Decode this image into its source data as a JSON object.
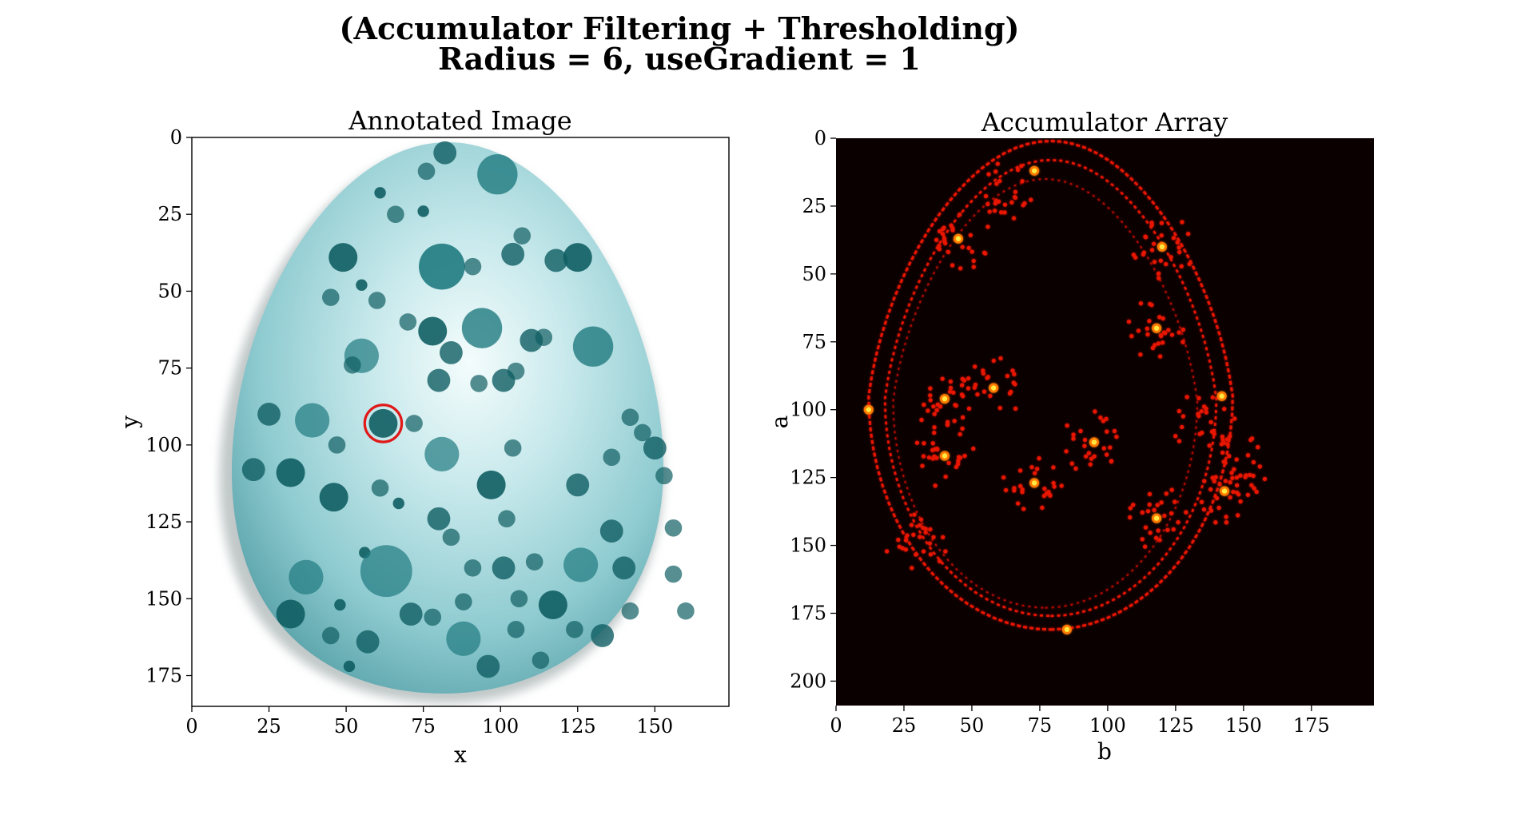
{
  "suptitle": {
    "line1": "(Accumulator Filtering + Thresholding)",
    "line2": "Radius = 6, useGradient = 1"
  },
  "colors": {
    "egg_light": "#e6f6f7",
    "egg_mid": "#9fd2d6",
    "egg_dark": "#6fb4ba",
    "spot": "#1f7b80",
    "spot_dark": "#0f5e63",
    "detection": "#e01818",
    "acc_bg": "#0b0000",
    "acc_edge": "#e81400",
    "acc_hot": "#ffe840"
  },
  "chart_data": [
    {
      "type": "image",
      "title": "Annotated Image",
      "xlabel": "x",
      "ylabel": "y",
      "xlim": [
        0,
        174
      ],
      "ylim": [
        185,
        0
      ],
      "xticks": [
        0,
        25,
        50,
        75,
        100,
        125,
        150
      ],
      "yticks": [
        0,
        25,
        50,
        75,
        100,
        125,
        150,
        175
      ],
      "grid": false,
      "detected_circle": {
        "center_x": 62,
        "center_y": 93,
        "radius": 6,
        "color": "#e01818"
      }
    },
    {
      "type": "heatmap",
      "title": "Accumulator Array",
      "xlabel": "b",
      "ylabel": "a",
      "xlim": [
        0,
        198
      ],
      "ylim": [
        209,
        0
      ],
      "xticks": [
        0,
        25,
        50,
        75,
        100,
        125,
        150,
        175
      ],
      "yticks": [
        0,
        25,
        50,
        75,
        100,
        125,
        150,
        175,
        200
      ],
      "colormap": "hot",
      "grid": false,
      "hot_spots": [
        {
          "b": 73,
          "a": 12
        },
        {
          "b": 45,
          "a": 37
        },
        {
          "b": 120,
          "a": 40
        },
        {
          "b": 118,
          "a": 70
        },
        {
          "b": 58,
          "a": 92
        },
        {
          "b": 40,
          "a": 96
        },
        {
          "b": 95,
          "a": 112
        },
        {
          "b": 40,
          "a": 117
        },
        {
          "b": 73,
          "a": 127
        },
        {
          "b": 143,
          "a": 130
        },
        {
          "b": 118,
          "a": 140
        },
        {
          "b": 12,
          "a": 100
        },
        {
          "b": 142,
          "a": 95
        },
        {
          "b": 85,
          "a": 181
        }
      ]
    }
  ]
}
